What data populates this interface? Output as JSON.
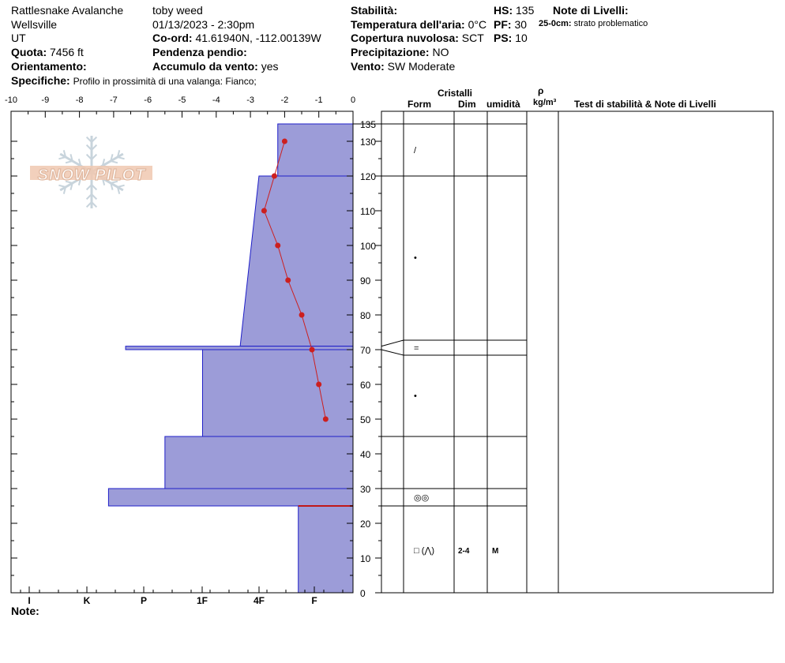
{
  "header": {
    "location_name": "Rattlesnake Avalanche",
    "location_city": "Wellsville",
    "location_state": "UT",
    "elevation_label": "Quota:",
    "elevation_value": "7456 ft",
    "aspect_label": "Orientamento:",
    "aspect_value": "",
    "observer": "toby weed",
    "datetime": "01/13/2023 - 2:30pm",
    "coords_label": "Co-ord:",
    "coords_value": "41.61940N, -112.00139W",
    "slope_label": "Pendenza pendio:",
    "slope_value": "",
    "wind_loading_label": "Accumulo da vento:",
    "wind_loading_value": "yes",
    "stability_label": "Stabilità:",
    "stability_value": "",
    "air_temp_label": "Temperatura dell'aria:",
    "air_temp_value": "0°C",
    "cloud_label": "Copertura nuvolosa:",
    "cloud_value": "SCT",
    "precip_label": "Precipitazione:",
    "precip_value": "NO",
    "wind_label": "Vento:",
    "wind_value": "SW Moderate",
    "hs_label": "HS:",
    "hs_value": "135",
    "pf_label": "PF:",
    "pf_value": "30",
    "ps_label": "PS:",
    "ps_value": "10",
    "layer_notes_label": "Note di Livelli:",
    "layer_note_depth": "25-0cm:",
    "layer_note_text": "strato problematico",
    "specifics_label": "Specifiche:",
    "specifics_value": "Profilo in prossimità di una valanga: Fianco;"
  },
  "logo_text": "SNOW PILOT",
  "columns": {
    "crystals": "Cristalli",
    "form": "Form",
    "size": "Dim",
    "moisture": "umidità",
    "density_symbol": "ρ",
    "density_unit": "kg/m³",
    "stability_notes": "Test di stabilità & Note di Livelli"
  },
  "footer": {
    "notes_label": "Note:"
  },
  "colors": {
    "layer_fill": "#9c9cd8",
    "layer_stroke": "#1f1fc8",
    "temp_line": "#cc1f1f",
    "weak_layer": "#c01818"
  },
  "chart_data": {
    "type": "area",
    "temp_axis": {
      "ticks": [
        "-10",
        "-9",
        "-8",
        "-7",
        "-6",
        "-5",
        "-4",
        "-3",
        "-2",
        "-1",
        "0"
      ],
      "range": [
        -10,
        0
      ],
      "unit": "°C"
    },
    "height_axis": {
      "ticks": [
        "135",
        "130",
        "120",
        "110",
        "100",
        "90",
        "80",
        "70",
        "60",
        "50",
        "40",
        "30",
        "20",
        "10",
        "0"
      ],
      "range": [
        0,
        135
      ],
      "unit": "cm"
    },
    "hardness_axis": {
      "ticks": [
        "I",
        "K",
        "P",
        "1F",
        "4F",
        "F"
      ]
    },
    "temperature_profile": [
      {
        "height": 130,
        "temp": -2.0
      },
      {
        "height": 120,
        "temp": -2.3
      },
      {
        "height": 110,
        "temp": -2.6
      },
      {
        "height": 100,
        "temp": -2.2
      },
      {
        "height": 90,
        "temp": -1.9
      },
      {
        "height": 80,
        "temp": -1.5
      },
      {
        "height": 70,
        "temp": -1.2
      },
      {
        "height": 60,
        "temp": -1.0
      },
      {
        "height": 50,
        "temp": -0.8
      }
    ],
    "layers": [
      {
        "top": 135,
        "bottom": 120,
        "hardness_temp": -2.2,
        "form": "/",
        "size": "",
        "moisture": ""
      },
      {
        "top": 120,
        "bottom": 71,
        "hardness_temp": -2.75,
        "hardness_temp_bottom": -3.3,
        "form": "•",
        "size": "",
        "moisture": ""
      },
      {
        "top": 71,
        "bottom": 70,
        "hardness_temp": -6.65,
        "form": "=",
        "size": "",
        "moisture": ""
      },
      {
        "top": 70,
        "bottom": 45,
        "hardness_temp": -4.4,
        "form": "•",
        "size": "",
        "moisture": ""
      },
      {
        "top": 45,
        "bottom": 30,
        "hardness_temp": -5.5,
        "form": "",
        "size": "",
        "moisture": ""
      },
      {
        "top": 30,
        "bottom": 25,
        "hardness_temp": -7.15,
        "form": "◎◎",
        "size": "",
        "moisture": ""
      },
      {
        "top": 25,
        "bottom": 0,
        "hardness_temp": -1.6,
        "form": "□ (⋀)",
        "size": "2-4",
        "moisture": "M"
      }
    ],
    "weak_layer_height": 25
  }
}
